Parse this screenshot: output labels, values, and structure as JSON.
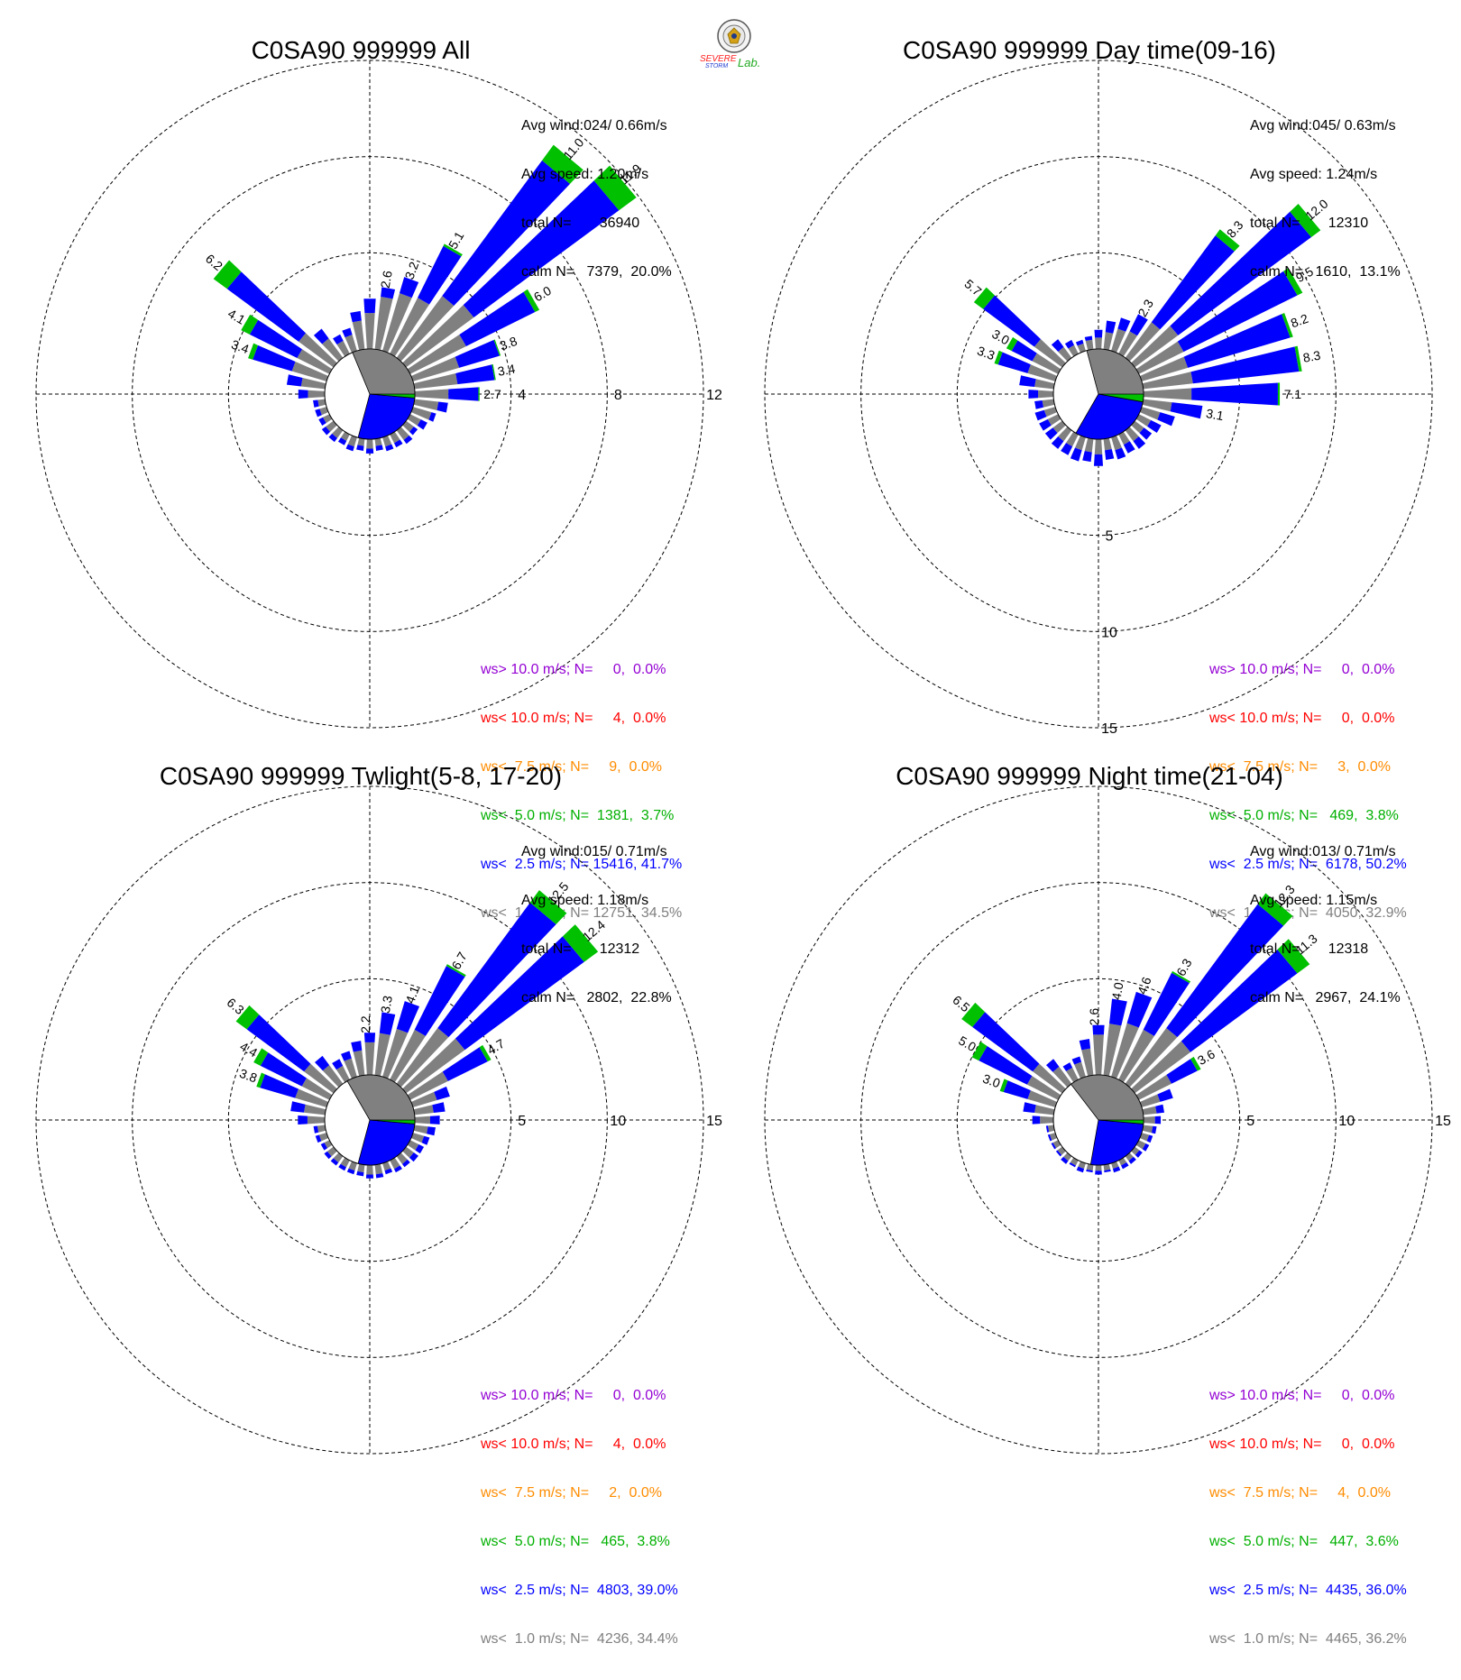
{
  "colors": {
    "ws_gt_10": "#9400d3",
    "ws_lt_10": "#ff0000",
    "ws_lt_7_5": "#ff8c00",
    "ws_lt_5": "#00c000",
    "ws_lt_2_5": "#0000ff",
    "ws_lt_1": "#808080"
  },
  "logo": {
    "line1": "SEVERE",
    "line2": "STORM",
    "line3": "Lab."
  },
  "chart_data": [
    {
      "type": "polar-bar",
      "title": "C0SA90 999999 All",
      "stats": [
        "Avg wind:024/ 0.66m/s",
        "Avg speed: 1.20m/s",
        "total N=       36940",
        "calm N=   7379,  20.0%"
      ],
      "rings": [
        4,
        8,
        12
      ],
      "ring_labels": [
        "4",
        "8",
        "12"
      ],
      "ring_label_axis": "east",
      "max": 12,
      "calm_pie": {
        "gray_deg": 205,
        "blue_deg": 100,
        "green_deg": 5
      },
      "dirs": [
        0,
        10,
        20,
        30,
        40,
        50,
        60,
        70,
        80,
        90,
        100,
        110,
        120,
        130,
        140,
        150,
        160,
        170,
        180,
        190,
        200,
        210,
        220,
        230,
        240,
        250,
        260,
        270,
        280,
        290,
        300,
        310,
        320,
        330,
        340,
        350
      ],
      "totals": [
        2.1,
        2.6,
        3.2,
        5.1,
        11.0,
        11.9,
        6.0,
        3.8,
        3.4,
        2.7,
        1.4,
        1.0,
        0.8,
        0.6,
        0.7,
        0.6,
        0.6,
        0.5,
        0.6,
        0.5,
        0.6,
        0.5,
        0.6,
        0.6,
        0.5,
        0.5,
        0.5,
        1.1,
        1.6,
        3.4,
        4.1,
        6.2,
        1.5,
        0.9,
        1.0,
        1.6
      ],
      "gray": [
        1.5,
        2.2,
        2.5,
        2.6,
        3.2,
        3.5,
        2.6,
        2.0,
        1.8,
        1.4,
        1.0,
        0.8,
        0.5,
        0.4,
        0.5,
        0.4,
        0.4,
        0.3,
        0.4,
        0.3,
        0.4,
        0.3,
        0.4,
        0.4,
        0.3,
        0.3,
        0.3,
        0.7,
        1.0,
        1.5,
        1.5,
        1.8,
        1.0,
        0.6,
        0.7,
        1.2
      ],
      "green": [
        0,
        0,
        0,
        0.1,
        0.8,
        0.9,
        0.2,
        0.05,
        0.05,
        0.05,
        0,
        0,
        0,
        0,
        0,
        0,
        0,
        0,
        0,
        0,
        0,
        0,
        0,
        0,
        0,
        0,
        0,
        0,
        0,
        0.2,
        0.4,
        0.7,
        0,
        0,
        0,
        0
      ],
      "labels": [
        {
          "dir": 10,
          "text": "2.6"
        },
        {
          "dir": 20,
          "text": "3.2"
        },
        {
          "dir": 30,
          "text": "5.1"
        },
        {
          "dir": 40,
          "text": "11.0"
        },
        {
          "dir": 50,
          "text": "11.9"
        },
        {
          "dir": 60,
          "text": "6.0"
        },
        {
          "dir": 70,
          "text": "3.8"
        },
        {
          "dir": 80,
          "text": "3.4"
        },
        {
          "dir": 90,
          "text": "2.7"
        },
        {
          "dir": 290,
          "text": "3.4"
        },
        {
          "dir": 300,
          "text": "4.1"
        },
        {
          "dir": 310,
          "text": "6.2"
        }
      ],
      "legend": [
        "ws> 10.0 m/s; N=     0,  0.0%",
        "ws< 10.0 m/s; N=     4,  0.0%",
        "ws<  7.5 m/s; N=     9,  0.0%",
        "ws<  5.0 m/s; N=  1381,  3.7%",
        "ws<  2.5 m/s; N= 15416, 41.7%",
        "ws<  1.0 m/s; N= 12751, 34.5%"
      ]
    },
    {
      "type": "polar-bar",
      "title": "C0SA90 999999 Day time(09-16)",
      "stats": [
        "Avg wind:045/ 0.63m/s",
        "Avg speed: 1.24m/s",
        "total N=       12310",
        "calm N=   1610,  13.1%"
      ],
      "rings": [
        5,
        10,
        15
      ],
      "ring_labels": [
        "5",
        "10",
        "15"
      ],
      "ring_label_axis": "south",
      "max": 15,
      "calm_pie": {
        "gray_deg": 200,
        "blue_deg": 110,
        "green_deg": 10
      },
      "dirs": [
        0,
        10,
        20,
        30,
        40,
        50,
        60,
        70,
        80,
        90,
        100,
        110,
        120,
        130,
        140,
        150,
        160,
        170,
        180,
        190,
        200,
        210,
        220,
        230,
        240,
        250,
        260,
        270,
        280,
        290,
        300,
        310,
        320,
        330,
        340,
        350
      ],
      "totals": [
        1.0,
        1.5,
        1.8,
        2.3,
        8.3,
        12.0,
        9.5,
        8.2,
        8.3,
        7.1,
        3.1,
        1.8,
        1.3,
        1.1,
        1.2,
        1.1,
        1.2,
        1.1,
        1.4,
        1.2,
        1.3,
        1.2,
        1.2,
        1.1,
        1.1,
        1.1,
        1.0,
        1.3,
        1.8,
        3.3,
        3.0,
        5.7,
        1.2,
        0.8,
        0.6,
        0.7
      ],
      "gray": [
        0.6,
        0.9,
        1.2,
        1.3,
        2.3,
        2.8,
        2.6,
        2.5,
        2.6,
        2.5,
        1.5,
        1.0,
        0.7,
        0.6,
        0.7,
        0.6,
        0.7,
        0.6,
        0.8,
        0.7,
        0.7,
        0.7,
        0.7,
        0.6,
        0.6,
        0.6,
        0.6,
        0.8,
        1.0,
        1.5,
        1.5,
        1.8,
        0.7,
        0.5,
        0.4,
        0.5
      ],
      "green": [
        0,
        0,
        0,
        0,
        0.4,
        0.6,
        0.3,
        0.15,
        0.15,
        0.1,
        0,
        0,
        0,
        0,
        0,
        0,
        0,
        0,
        0,
        0,
        0,
        0,
        0,
        0,
        0,
        0,
        0,
        0,
        0,
        0.2,
        0.3,
        0.6,
        0,
        0,
        0,
        0
      ],
      "labels": [
        {
          "dir": 30,
          "text": "2.3"
        },
        {
          "dir": 40,
          "text": "8.3"
        },
        {
          "dir": 50,
          "text": "12.0"
        },
        {
          "dir": 60,
          "text": "9.5"
        },
        {
          "dir": 70,
          "text": "8.2"
        },
        {
          "dir": 80,
          "text": "8.3"
        },
        {
          "dir": 90,
          "text": "7.1"
        },
        {
          "dir": 100,
          "text": "3.1"
        },
        {
          "dir": 290,
          "text": "3.3"
        },
        {
          "dir": 300,
          "text": "3.0"
        },
        {
          "dir": 310,
          "text": "5.7"
        }
      ],
      "legend": [
        "ws> 10.0 m/s; N=     0,  0.0%",
        "ws< 10.0 m/s; N=     0,  0.0%",
        "ws<  7.5 m/s; N=     3,  0.0%",
        "ws<  5.0 m/s; N=   469,  3.8%",
        "ws<  2.5 m/s; N=  6178, 50.2%",
        "ws<  1.0 m/s; N=  4050, 32.9%"
      ]
    },
    {
      "type": "polar-bar",
      "title": "C0SA90 999999 Twlight(5-8, 17-20)",
      "stats": [
        "Avg wind:015/ 0.71m/s",
        "Avg speed: 1.18m/s",
        "total N=       12312",
        "calm N=   2802,  22.8%"
      ],
      "rings": [
        5,
        10,
        15
      ],
      "ring_labels": [
        "5",
        "10",
        "15"
      ],
      "ring_label_axis": "east",
      "max": 15,
      "calm_pie": {
        "gray_deg": 210,
        "blue_deg": 100,
        "green_deg": 5
      },
      "dirs": [
        0,
        10,
        20,
        30,
        40,
        50,
        60,
        70,
        80,
        90,
        100,
        110,
        120,
        130,
        140,
        150,
        160,
        170,
        180,
        190,
        200,
        210,
        220,
        230,
        240,
        250,
        260,
        270,
        280,
        290,
        300,
        310,
        320,
        330,
        340,
        350
      ],
      "totals": [
        2.2,
        3.3,
        4.1,
        6.7,
        12.5,
        12.4,
        4.7,
        2.0,
        1.6,
        1.3,
        1.1,
        0.9,
        0.8,
        0.8,
        0.7,
        0.7,
        0.6,
        0.7,
        0.7,
        0.6,
        0.6,
        0.6,
        0.6,
        0.6,
        0.5,
        0.6,
        0.6,
        1.4,
        1.8,
        3.8,
        4.4,
        6.3,
        1.8,
        1.2,
        1.4,
        1.8
      ],
      "gray": [
        1.7,
        2.2,
        2.6,
        2.9,
        3.6,
        3.8,
        2.2,
        1.3,
        1.0,
        0.8,
        0.7,
        0.6,
        0.5,
        0.5,
        0.5,
        0.5,
        0.4,
        0.5,
        0.5,
        0.4,
        0.4,
        0.4,
        0.4,
        0.4,
        0.3,
        0.4,
        0.4,
        0.9,
        1.1,
        1.7,
        1.6,
        1.9,
        1.2,
        0.8,
        1.0,
        1.3
      ],
      "green": [
        0,
        0,
        0,
        0.1,
        0.8,
        0.9,
        0.2,
        0,
        0,
        0,
        0,
        0,
        0,
        0,
        0,
        0,
        0,
        0,
        0,
        0,
        0,
        0,
        0,
        0,
        0,
        0,
        0,
        0,
        0,
        0.2,
        0.4,
        0.7,
        0,
        0,
        0,
        0
      ],
      "labels": [
        {
          "dir": 0,
          "text": "2.2"
        },
        {
          "dir": 10,
          "text": "3.3"
        },
        {
          "dir": 20,
          "text": "4.1"
        },
        {
          "dir": 30,
          "text": "6.7"
        },
        {
          "dir": 40,
          "text": "12.5"
        },
        {
          "dir": 50,
          "text": "12.4"
        },
        {
          "dir": 60,
          "text": "4.7"
        },
        {
          "dir": 290,
          "text": "3.8"
        },
        {
          "dir": 300,
          "text": "4.4"
        },
        {
          "dir": 310,
          "text": "6.3"
        }
      ],
      "legend": [
        "ws> 10.0 m/s; N=     0,  0.0%",
        "ws< 10.0 m/s; N=     4,  0.0%",
        "ws<  7.5 m/s; N=     2,  0.0%",
        "ws<  5.0 m/s; N=   465,  3.8%",
        "ws<  2.5 m/s; N=  4803, 39.0%",
        "ws<  1.0 m/s; N=  4236, 34.4%"
      ]
    },
    {
      "type": "polar-bar",
      "title": "C0SA90 999999 Night time(21-04)",
      "stats": [
        "Avg wind:013/ 0.71m/s",
        "Avg speed: 1.15m/s",
        "total N=       12318",
        "calm N=   2967,  24.1%"
      ],
      "rings": [
        5,
        10,
        15
      ],
      "ring_labels": [
        "5",
        "10",
        "15"
      ],
      "ring_label_axis": "east",
      "max": 15,
      "calm_pie": {
        "gray_deg": 215,
        "blue_deg": 95,
        "green_deg": 5
      },
      "dirs": [
        0,
        10,
        20,
        30,
        40,
        50,
        60,
        70,
        80,
        90,
        100,
        110,
        120,
        130,
        140,
        150,
        160,
        170,
        180,
        190,
        200,
        210,
        220,
        230,
        240,
        250,
        260,
        270,
        280,
        290,
        300,
        310,
        320,
        330,
        340,
        350
      ],
      "totals": [
        2.6,
        4.0,
        4.6,
        6.3,
        12.3,
        11.3,
        3.6,
        1.7,
        1.1,
        0.9,
        0.7,
        0.6,
        0.6,
        0.5,
        0.5,
        0.5,
        0.5,
        0.4,
        0.5,
        0.4,
        0.5,
        0.4,
        0.5,
        0.4,
        0.4,
        0.4,
        0.4,
        1.1,
        1.6,
        3.0,
        5.0,
        6.5,
        1.6,
        1.0,
        1.1,
        1.9
      ],
      "gray": [
        2.1,
        2.7,
        2.9,
        2.9,
        3.6,
        3.6,
        1.9,
        1.0,
        0.7,
        0.6,
        0.5,
        0.4,
        0.4,
        0.3,
        0.3,
        0.3,
        0.3,
        0.3,
        0.3,
        0.3,
        0.3,
        0.3,
        0.3,
        0.3,
        0.3,
        0.3,
        0.3,
        0.7,
        1.0,
        1.5,
        1.8,
        1.9,
        1.1,
        0.7,
        0.8,
        1.4
      ],
      "green": [
        0,
        0,
        0,
        0.1,
        0.7,
        0.8,
        0.2,
        0,
        0,
        0,
        0,
        0,
        0,
        0,
        0,
        0,
        0,
        0,
        0,
        0,
        0,
        0,
        0,
        0,
        0,
        0,
        0,
        0,
        0,
        0.2,
        0.4,
        0.7,
        0,
        0,
        0,
        0
      ],
      "labels": [
        {
          "dir": 0,
          "text": "2.6"
        },
        {
          "dir": 10,
          "text": "4.0"
        },
        {
          "dir": 20,
          "text": "4.6"
        },
        {
          "dir": 30,
          "text": "6.3"
        },
        {
          "dir": 40,
          "text": "12.3"
        },
        {
          "dir": 50,
          "text": "11.3"
        },
        {
          "dir": 60,
          "text": "3.6"
        },
        {
          "dir": 290,
          "text": "3.0"
        },
        {
          "dir": 300,
          "text": "5.0"
        },
        {
          "dir": 310,
          "text": "6.5"
        }
      ],
      "legend": [
        "ws> 10.0 m/s; N=     0,  0.0%",
        "ws< 10.0 m/s; N=     0,  0.0%",
        "ws<  7.5 m/s; N=     4,  0.0%",
        "ws<  5.0 m/s; N=   447,  3.6%",
        "ws<  2.5 m/s; N=  4435, 36.0%",
        "ws<  1.0 m/s; N=  4465, 36.2%"
      ]
    }
  ]
}
